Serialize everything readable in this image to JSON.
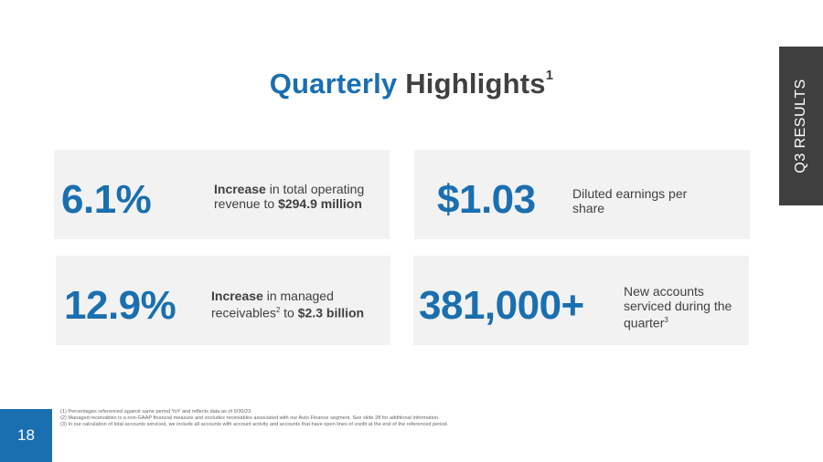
{
  "title": {
    "accent": "Quarterly",
    "rest": "Highlights",
    "sup": "1"
  },
  "side_tab": "Q3 RESULTS",
  "cards": [
    {
      "stat": "6.1%",
      "bold1": "Increase",
      "text1": " in total operating revenue to ",
      "bold2": "$294.9 million"
    },
    {
      "stat": "$1.03",
      "text1": "Diluted earnings per share"
    },
    {
      "stat": "12.9%",
      "bold1": "Increase",
      "text1": " in managed receivables",
      "sup": "2",
      "text2": " to ",
      "bold2": "$2.3 billion"
    },
    {
      "stat": "381,000+",
      "text1": "New accounts serviced during the quarter",
      "sup": "3"
    }
  ],
  "page_number": "18",
  "footnotes": [
    "(1) Percentages referenced against same period YoY and reflects data as of 9/30/23",
    "(2) Managed receivables is a non-GAAP financial measure and excludes receivables associated with our Auto Finance segment. See slide 28 for additional information.",
    "(3) In our calculation of total accounts serviced, we include all accounts with account activity and accounts that have open lines of credit at the end of the referenced period."
  ]
}
